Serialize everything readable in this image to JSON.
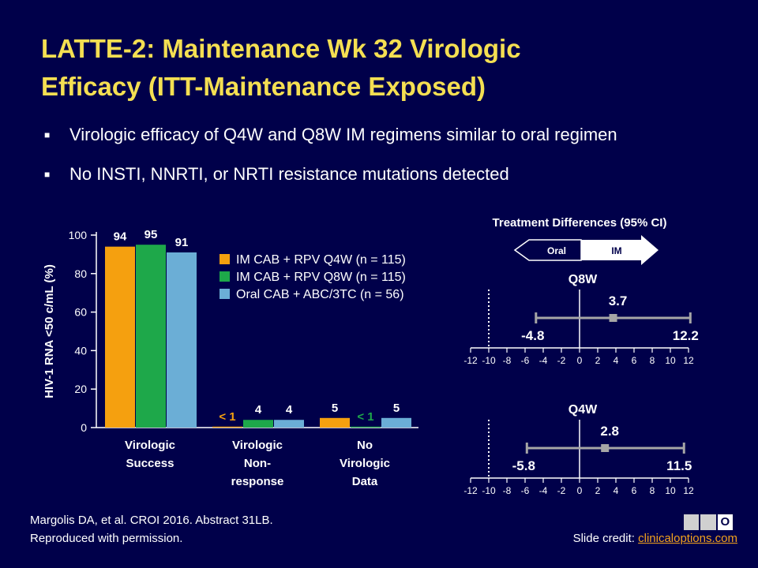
{
  "slide": {
    "title_line1": "LATTE-2: Maintenance Wk 32 Virologic",
    "title_line2": "Efficacy (ITT-Maintenance Exposed)",
    "bullets": [
      "Virologic efficacy of Q4W and Q8W IM regimens similar to oral regimen",
      "No INSTI, NNRTI, or NRTI resistance mutations detected"
    ],
    "bullet_mark": "■",
    "citation_line1": "Margolis DA, et al. CROI 2016. Abstract 31LB.",
    "citation_line2": "Reproduced with permission.",
    "credit_prefix": "Slide credit: ",
    "credit_link": "clinicaloptions.com",
    "logo_letters": [
      "C",
      "C",
      "O"
    ]
  },
  "chart_data": [
    {
      "type": "bar",
      "ylabel": "HIV-1 RNA <50 c/mL (%)",
      "ylim": [
        0,
        100
      ],
      "yticks": [
        0,
        20,
        40,
        60,
        80,
        100
      ],
      "categories": [
        [
          "Virologic",
          "Success"
        ],
        [
          "Virologic",
          "Non-",
          "response"
        ],
        [
          "No",
          "Virologic",
          "Data"
        ]
      ],
      "series": [
        {
          "name": "IM CAB + RPV Q4W (n = 115)",
          "color": "#f5a00f",
          "values": [
            94,
            0.5,
            5
          ],
          "labels": [
            "94",
            "< 1",
            "5"
          ],
          "label_colors": [
            "#ffffff",
            "#f5a00f",
            "#ffffff"
          ]
        },
        {
          "name": "IM CAB + RPV Q8W (n = 115)",
          "color": "#1ea84a",
          "values": [
            95,
            4,
            0.5
          ],
          "labels": [
            "95",
            "4",
            "< 1"
          ],
          "label_colors": [
            "#ffffff",
            "#ffffff",
            "#1ea84a"
          ]
        },
        {
          "name": "Oral CAB + ABC/3TC (n = 56)",
          "color": "#6baed6",
          "values": [
            91,
            4,
            5
          ],
          "labels": [
            "91",
            "4",
            "5"
          ],
          "label_colors": [
            "#ffffff",
            "#ffffff",
            "#ffffff"
          ]
        }
      ],
      "legend": "right"
    },
    {
      "type": "scatter",
      "title": "Treatment Differences (95% CI)",
      "arrow_left_label": "Oral",
      "arrow_right_label": "IM",
      "xlim": [
        -12,
        12
      ],
      "xticks": [
        -12,
        -10,
        -8,
        -6,
        -4,
        -2,
        0,
        2,
        4,
        6,
        8,
        10,
        12
      ],
      "reference_line": -10,
      "panels": [
        {
          "name": "Q8W",
          "estimate": 3.7,
          "lower": -4.8,
          "upper": 12.2,
          "estimate_label": "3.7",
          "lower_label": "-4.8",
          "upper_label": "12.2"
        },
        {
          "name": "Q4W",
          "estimate": 2.8,
          "lower": -5.8,
          "upper": 11.5,
          "estimate_label": "2.8",
          "lower_label": "-5.8",
          "upper_label": "11.5"
        }
      ]
    }
  ]
}
